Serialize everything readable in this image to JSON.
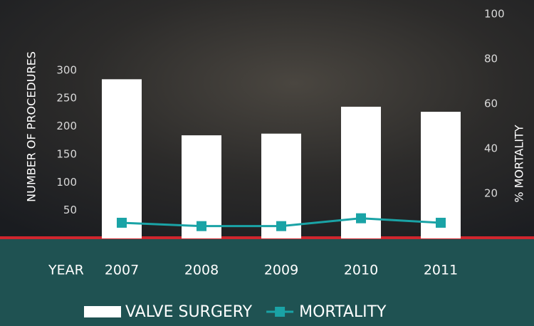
{
  "chart_data": {
    "type": "bar",
    "x_label": "YEAR",
    "y_label": "NUMBER OF PROCEDURES",
    "y2_label": "% MORTALITY",
    "categories": [
      "2007",
      "2008",
      "2009",
      "2010",
      "2011"
    ],
    "series": [
      {
        "name": "VALVE SURGERY",
        "type": "bar",
        "color": "#ffffff",
        "values": [
          284,
          184,
          187,
          235,
          226
        ]
      },
      {
        "name": "MORTALITY",
        "type": "line",
        "axis": "y2",
        "color": "#1aa3a6",
        "values": [
          7,
          5.5,
          5.5,
          9,
          7
        ]
      }
    ],
    "ylim": [
      0,
      400
    ],
    "yticks": [
      50,
      100,
      150,
      200,
      250,
      300
    ],
    "y2lim": [
      0,
      100
    ],
    "y2ticks": [
      20,
      40,
      60,
      80,
      100
    ],
    "grid": false
  }
}
